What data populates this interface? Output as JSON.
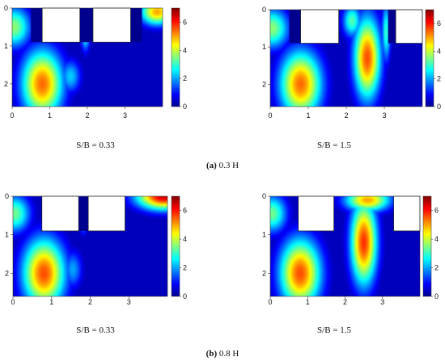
{
  "figure": {
    "captions": [
      {
        "label": "(a)",
        "text": " 0.3 H"
      },
      {
        "label": "(b)",
        "text": " 0.8 H"
      }
    ],
    "colormap": [
      "#00008f",
      "#0000ff",
      "#0080ff",
      "#00ffff",
      "#80ff80",
      "#ffff00",
      "#ff8000",
      "#ff0000",
      "#800000"
    ]
  },
  "chart_data": [
    {
      "type": "heatmap",
      "row": 0,
      "col": 0,
      "title": "S/B = 0.33",
      "xlim": [
        0,
        4
      ],
      "ylim": [
        2.6,
        0
      ],
      "xticks": [
        0,
        1,
        2,
        3
      ],
      "yticks": [
        0,
        1,
        2
      ],
      "colorbar": {
        "min": 0,
        "max": 7,
        "ticks": [
          0,
          2,
          4,
          6
        ]
      },
      "obstacles": [
        {
          "x": [
            0.8,
            1.8
          ],
          "y": [
            0,
            0.9
          ]
        },
        {
          "x": [
            2.15,
            3.15
          ],
          "y": [
            0,
            0.9
          ]
        }
      ],
      "notches": [
        {
          "x": [
            0.5,
            0.8
          ],
          "y": [
            0,
            0.9
          ]
        },
        {
          "x": [
            1.8,
            2.15
          ],
          "y": [
            0,
            0.9
          ]
        },
        {
          "x": [
            3.15,
            3.45
          ],
          "y": [
            0,
            0.9
          ]
        }
      ],
      "hotspots": [
        {
          "x": 0.8,
          "y": 2.0,
          "sx": 0.55,
          "sy": 0.9,
          "v": 5.4
        },
        {
          "x": 0.05,
          "y": 0.5,
          "sx": 0.45,
          "sy": 0.55,
          "v": 3.6
        },
        {
          "x": 1.95,
          "y": 0.5,
          "sx": 0.12,
          "sy": 0.55,
          "v": 4.0
        },
        {
          "x": 1.55,
          "y": 1.8,
          "sx": 0.28,
          "sy": 0.45,
          "v": 2.3
        },
        {
          "x": 3.85,
          "y": 0.1,
          "sx": 0.45,
          "sy": 0.35,
          "v": 5.0
        }
      ]
    },
    {
      "type": "heatmap",
      "row": 0,
      "col": 1,
      "title": "S/B = 1.5",
      "xlim": [
        0,
        4
      ],
      "ylim": [
        2.6,
        0
      ],
      "xticks": [
        0,
        1,
        2,
        3
      ],
      "yticks": [
        0,
        1,
        2
      ],
      "colorbar": {
        "min": 0,
        "max": 7,
        "ticks": [
          0,
          2,
          4,
          6
        ]
      },
      "obstacles": [
        {
          "x": [
            0.8,
            1.8
          ],
          "y": [
            0,
            0.9
          ]
        },
        {
          "x": [
            3.3,
            4.0
          ],
          "y": [
            0,
            0.9
          ]
        }
      ],
      "notches": [
        {
          "x": [
            0.5,
            0.8
          ],
          "y": [
            0,
            0.9
          ]
        },
        {
          "x": [
            3.1,
            3.3
          ],
          "y": [
            0,
            0.9
          ]
        }
      ],
      "hotspots": [
        {
          "x": 0.8,
          "y": 2.0,
          "sx": 0.55,
          "sy": 0.9,
          "v": 5.4
        },
        {
          "x": 0.05,
          "y": 0.5,
          "sx": 0.45,
          "sy": 0.55,
          "v": 3.6
        },
        {
          "x": 2.55,
          "y": 1.3,
          "sx": 0.35,
          "sy": 1.1,
          "v": 5.6
        },
        {
          "x": 2.15,
          "y": 0.3,
          "sx": 0.25,
          "sy": 0.45,
          "v": 3.2
        },
        {
          "x": 3.05,
          "y": 0.6,
          "sx": 0.12,
          "sy": 0.8,
          "v": 3.0
        }
      ]
    },
    {
      "type": "heatmap",
      "row": 1,
      "col": 0,
      "title": "S/B = 0.33",
      "xlim": [
        0,
        4
      ],
      "ylim": [
        2.6,
        0
      ],
      "xticks": [
        0,
        1,
        2,
        3
      ],
      "yticks": [
        0,
        1,
        2
      ],
      "colorbar": {
        "min": 0,
        "max": 7,
        "ticks": [
          0,
          2,
          4,
          6
        ]
      },
      "obstacles": [
        {
          "x": [
            0.75,
            1.7
          ],
          "y": [
            0,
            0.9
          ]
        },
        {
          "x": [
            1.95,
            2.9
          ],
          "y": [
            0,
            0.9
          ]
        }
      ],
      "notches": [
        {
          "x": [
            1.7,
            1.95
          ],
          "y": [
            0,
            0.9
          ]
        }
      ],
      "hotspots": [
        {
          "x": 0.8,
          "y": 2.0,
          "sx": 0.55,
          "sy": 0.9,
          "v": 5.6
        },
        {
          "x": 0.05,
          "y": 0.45,
          "sx": 0.4,
          "sy": 0.5,
          "v": 3.4
        },
        {
          "x": 1.82,
          "y": 0.45,
          "sx": 0.1,
          "sy": 0.4,
          "v": 4.8
        },
        {
          "x": 1.55,
          "y": 1.9,
          "sx": 0.25,
          "sy": 0.5,
          "v": 2.0
        },
        {
          "x": 3.9,
          "y": 0.0,
          "sx": 0.7,
          "sy": 0.35,
          "v": 6.5
        }
      ]
    },
    {
      "type": "heatmap",
      "row": 1,
      "col": 1,
      "title": "S/B = 1.5",
      "xlim": [
        0,
        4
      ],
      "ylim": [
        2.6,
        0
      ],
      "xticks": [
        0,
        1,
        2,
        3
      ],
      "yticks": [
        0,
        1,
        2
      ],
      "colorbar": {
        "min": 0,
        "max": 7,
        "ticks": [
          0,
          2,
          4,
          6
        ]
      },
      "obstacles": [
        {
          "x": [
            0.75,
            1.7
          ],
          "y": [
            0,
            0.9
          ]
        },
        {
          "x": [
            3.3,
            4.0
          ],
          "y": [
            0,
            0.9
          ]
        }
      ],
      "notches": [],
      "hotspots": [
        {
          "x": 0.8,
          "y": 2.0,
          "sx": 0.55,
          "sy": 0.9,
          "v": 5.6
        },
        {
          "x": 0.05,
          "y": 0.45,
          "sx": 0.4,
          "sy": 0.5,
          "v": 3.4
        },
        {
          "x": 2.5,
          "y": 1.2,
          "sx": 0.35,
          "sy": 1.1,
          "v": 5.8
        },
        {
          "x": 2.6,
          "y": 0.1,
          "sx": 0.6,
          "sy": 0.3,
          "v": 5.0
        }
      ]
    }
  ]
}
